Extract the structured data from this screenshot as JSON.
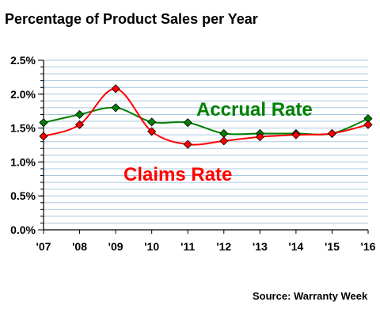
{
  "chart_data": {
    "type": "line",
    "title": "Percentage of Product Sales per Year",
    "categories": [
      "'07",
      "'08",
      "'09",
      "'10",
      "'11",
      "'12",
      "'13",
      "'14",
      "'15",
      "'16"
    ],
    "ylim": [
      0,
      2.5
    ],
    "yticks": [
      "0.0%",
      "0.5%",
      "1.0%",
      "1.5%",
      "2.0%",
      "2.5%"
    ],
    "grid": true,
    "series": [
      {
        "name": "Accrual Rate",
        "color": "#008000",
        "marker": "diamond",
        "values": [
          1.58,
          1.7,
          1.8,
          1.59,
          1.58,
          1.42,
          1.42,
          1.42,
          1.42,
          1.64
        ]
      },
      {
        "name": "Claims Rate",
        "color": "#ff0000",
        "marker": "diamond",
        "values": [
          1.38,
          1.55,
          2.08,
          1.45,
          1.26,
          1.31,
          1.37,
          1.4,
          1.42,
          1.55
        ]
      }
    ]
  },
  "source": "Source: Warranty Week"
}
